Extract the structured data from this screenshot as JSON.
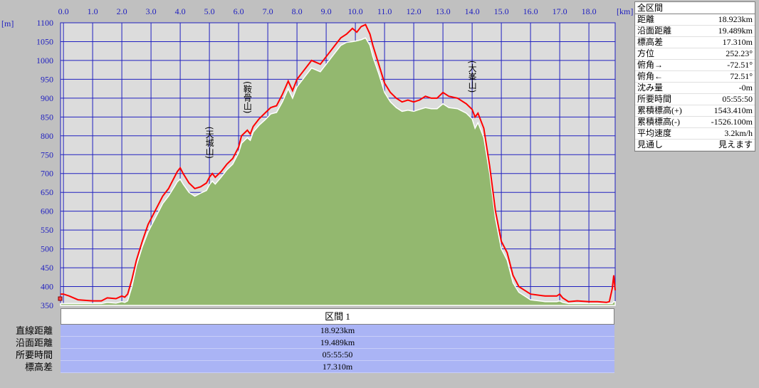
{
  "chart_data": {
    "type": "area",
    "x_unit_label": "[km]",
    "y_unit_label": "[m]",
    "xlim": [
      -0.1,
      18.9
    ],
    "ylim": [
      350,
      1100
    ],
    "x_ticks": [
      0.0,
      1.0,
      2.0,
      3.0,
      4.0,
      5.0,
      6.0,
      7.0,
      8.0,
      9.0,
      10.0,
      11.0,
      12.0,
      13.0,
      14.0,
      15.0,
      16.0,
      17.0,
      18.0
    ],
    "x_tick_labels": [
      "0.0",
      "1.0",
      "2.0",
      "3.0",
      "4.0",
      "5.0",
      "6.0",
      "7.0",
      "8.0",
      "9.0",
      "10.0",
      "11.0",
      "12.0",
      "13.0",
      "14.0",
      "15.0",
      "16.0",
      "17.0",
      "18.0"
    ],
    "y_ticks": [
      350,
      400,
      450,
      500,
      550,
      600,
      650,
      700,
      750,
      800,
      850,
      900,
      950,
      1000,
      1050,
      1100
    ],
    "grid": true,
    "series": [
      {
        "color": "#ff0000",
        "x": [
          -0.1,
          0.0,
          0.2,
          0.5,
          1.0,
          1.3,
          1.5,
          1.8,
          2.0,
          2.1,
          2.2,
          2.35,
          2.5,
          2.7,
          2.9,
          3.0,
          3.2,
          3.4,
          3.6,
          3.8,
          3.9,
          4.0,
          4.1,
          4.3,
          4.5,
          4.7,
          4.9,
          5.0,
          5.1,
          5.2,
          5.4,
          5.6,
          5.8,
          6.0,
          6.1,
          6.3,
          6.4,
          6.5,
          6.7,
          6.9,
          7.1,
          7.3,
          7.5,
          7.7,
          7.85,
          8.0,
          8.2,
          8.5,
          8.8,
          9.1,
          9.3,
          9.5,
          9.7,
          9.9,
          10.05,
          10.2,
          10.35,
          10.5,
          10.6,
          10.8,
          11.0,
          11.2,
          11.4,
          11.6,
          11.8,
          12.0,
          12.2,
          12.4,
          12.6,
          12.8,
          13.0,
          13.2,
          13.5,
          13.8,
          14.0,
          14.1,
          14.2,
          14.4,
          14.6,
          14.8,
          15.0,
          15.2,
          15.4,
          15.6,
          15.8,
          16.0,
          16.5,
          16.9,
          17.0,
          17.1,
          17.3,
          17.6,
          18.0,
          18.3,
          18.6,
          18.7,
          18.8,
          18.85,
          18.9
        ],
        "y": [
          380,
          380,
          375,
          365,
          362,
          362,
          370,
          368,
          375,
          372,
          380,
          420,
          470,
          520,
          565,
          580,
          610,
          640,
          660,
          690,
          705,
          715,
          700,
          675,
          660,
          665,
          675,
          690,
          700,
          690,
          705,
          725,
          740,
          770,
          800,
          815,
          805,
          825,
          845,
          860,
          875,
          880,
          910,
          945,
          920,
          950,
          970,
          1000,
          990,
          1020,
          1040,
          1060,
          1070,
          1085,
          1075,
          1090,
          1095,
          1070,
          1040,
          990,
          940,
          915,
          900,
          890,
          895,
          890,
          895,
          905,
          900,
          900,
          915,
          905,
          900,
          885,
          870,
          850,
          860,
          820,
          720,
          600,
          520,
          490,
          430,
          400,
          390,
          380,
          375,
          375,
          380,
          370,
          360,
          362,
          360,
          360,
          358,
          360,
          395,
          430,
          390
        ]
      },
      {
        "color": "#93b86f",
        "x": [
          -0.1,
          0.0,
          0.2,
          0.5,
          1.0,
          1.3,
          1.5,
          1.8,
          2.0,
          2.1,
          2.2,
          2.35,
          2.5,
          2.7,
          2.9,
          3.0,
          3.2,
          3.4,
          3.6,
          3.8,
          3.9,
          4.0,
          4.1,
          4.3,
          4.5,
          4.7,
          4.9,
          5.0,
          5.1,
          5.2,
          5.4,
          5.6,
          5.8,
          6.0,
          6.1,
          6.3,
          6.4,
          6.5,
          6.7,
          6.9,
          7.1,
          7.3,
          7.5,
          7.7,
          7.85,
          8.0,
          8.2,
          8.5,
          8.8,
          9.1,
          9.3,
          9.5,
          9.7,
          9.9,
          10.05,
          10.2,
          10.35,
          10.5,
          10.6,
          10.8,
          11.0,
          11.2,
          11.4,
          11.6,
          11.8,
          12.0,
          12.2,
          12.4,
          12.6,
          12.8,
          13.0,
          13.2,
          13.5,
          13.8,
          14.0,
          14.1,
          14.2,
          14.4,
          14.6,
          14.8,
          15.0,
          15.2,
          15.4,
          15.6,
          15.8,
          16.0,
          16.5,
          16.9,
          17.0,
          17.1,
          17.3,
          17.6,
          18.0,
          18.3,
          18.6,
          18.7,
          18.8,
          18.85,
          18.9
        ],
        "y": [
          355,
          355,
          355,
          355,
          355,
          355,
          358,
          356,
          360,
          358,
          362,
          400,
          455,
          505,
          545,
          560,
          590,
          620,
          640,
          665,
          678,
          685,
          672,
          650,
          640,
          648,
          655,
          670,
          680,
          672,
          690,
          710,
          725,
          755,
          780,
          795,
          788,
          810,
          828,
          842,
          858,
          862,
          890,
          925,
          900,
          930,
          950,
          980,
          970,
          1000,
          1020,
          1040,
          1048,
          1050,
          1052,
          1055,
          1060,
          1040,
          1010,
          965,
          915,
          890,
          875,
          865,
          868,
          865,
          870,
          875,
          872,
          872,
          885,
          875,
          872,
          860,
          845,
          820,
          835,
          795,
          700,
          580,
          500,
          470,
          410,
          385,
          375,
          365,
          360,
          360,
          362,
          358,
          355,
          355,
          355,
          355,
          355,
          355,
          355,
          360,
          360
        ]
      }
    ],
    "annotations": [
      {
        "text": "(天城山)",
        "x": 5.0,
        "y_top": 825
      },
      {
        "text": "(鞍骨山)",
        "x": 6.3,
        "y_top": 945
      },
      {
        "text": "(大峯山)",
        "x": 14.0,
        "y_top": 1000
      }
    ]
  },
  "summary": {
    "title": "全区間",
    "rows": [
      {
        "label": "距離",
        "value": "18.923km"
      },
      {
        "label": "沿面距離",
        "value": "19.489km"
      },
      {
        "label": "標高差",
        "value": "17.310m"
      },
      {
        "label": "方位",
        "value": "252.23°"
      },
      {
        "label": "俯角→",
        "value": "-72.51°"
      },
      {
        "label": "俯角←",
        "value": "72.51°"
      },
      {
        "label": "沈み量",
        "value": "-0m"
      },
      {
        "label": "所要時間",
        "value": "05:55:50"
      },
      {
        "label": "累積標高(+)",
        "value": "1543.410m"
      },
      {
        "label": "累積標高(-)",
        "value": "-1526.100m"
      },
      {
        "label": "平均速度",
        "value": "3.2km/h"
      },
      {
        "label": "見通し",
        "value": "見えます"
      }
    ]
  },
  "section": {
    "header": "区間 1",
    "labels": [
      "直線距離",
      "沿面距離",
      "所要時間",
      "標高差"
    ],
    "values": [
      "18.923km",
      "19.489km",
      "05:55:50",
      "17.310m"
    ]
  },
  "colors": {
    "plot_bg": "#dcdcdc",
    "grid": "#2020c0",
    "elevation_line": "#ff0000",
    "terrain_fill": "#93b86f",
    "terrain_edge": "#ffffff",
    "section_bg": "#aab4f5"
  }
}
